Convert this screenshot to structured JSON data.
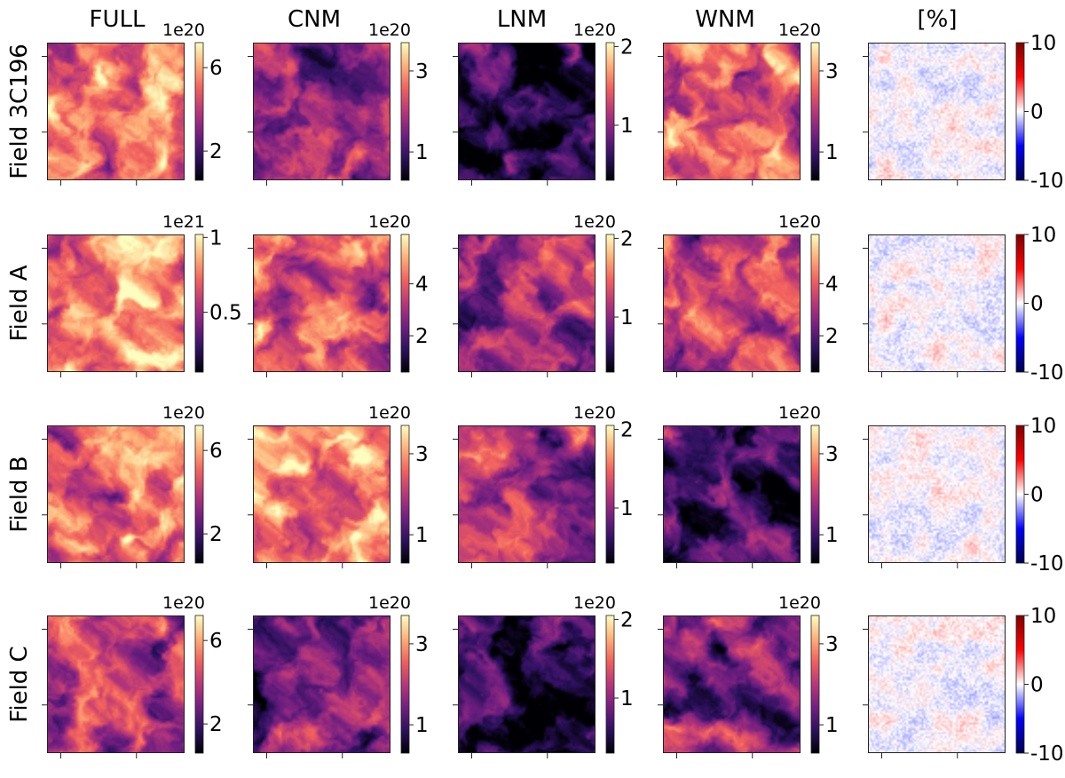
{
  "chart_data": {
    "type": "heatmap",
    "title": "",
    "columns": [
      "FULL",
      "CNM",
      "LNM",
      "WNM",
      "[%]"
    ],
    "rows": [
      {
        "label": "Field 3C196",
        "panels": [
          {
            "scale": "1e20",
            "cbar_ticks": [
              "2",
              "6"
            ],
            "cbar_tick_values": [
              2,
              6
            ],
            "cbar_range": [
              0.6,
              7.2
            ],
            "colormap": "magma",
            "mean_level": 0.72
          },
          {
            "scale": "1e20",
            "cbar_ticks": [
              "1",
              "3"
            ],
            "cbar_tick_values": [
              1,
              3
            ],
            "cbar_range": [
              0.3,
              3.7
            ],
            "colormap": "magma",
            "mean_level": 0.45
          },
          {
            "scale": "1e20",
            "cbar_ticks": [
              "1",
              "2"
            ],
            "cbar_tick_values": [
              1,
              2
            ],
            "cbar_range": [
              0.3,
              2.05
            ],
            "colormap": "magma",
            "mean_level": 0.14
          },
          {
            "scale": "1e20",
            "cbar_ticks": [
              "1",
              "3"
            ],
            "cbar_tick_values": [
              1,
              3
            ],
            "cbar_range": [
              0.3,
              3.7
            ],
            "colormap": "magma",
            "mean_level": 0.66
          },
          {
            "scale": "",
            "cbar_ticks": [
              "-10",
              "0",
              "10"
            ],
            "cbar_tick_values": [
              -10,
              0,
              10
            ],
            "cbar_range": [
              -10,
              10
            ],
            "colormap": "seismic",
            "mean_level": 0.5
          }
        ]
      },
      {
        "label": "Field A",
        "panels": [
          {
            "scale": "1e21",
            "cbar_ticks": [
              "0.5",
              "1"
            ],
            "cbar_tick_values": [
              0.5,
              1
            ],
            "cbar_range": [
              0.1,
              1.02
            ],
            "colormap": "magma",
            "mean_level": 0.78
          },
          {
            "scale": "1e20",
            "cbar_ticks": [
              "2",
              "4"
            ],
            "cbar_tick_values": [
              2,
              4
            ],
            "cbar_range": [
              0.6,
              5.9
            ],
            "colormap": "magma",
            "mean_level": 0.6
          },
          {
            "scale": "1e20",
            "cbar_ticks": [
              "1",
              "2"
            ],
            "cbar_tick_values": [
              1,
              2
            ],
            "cbar_range": [
              0.3,
              2.05
            ],
            "colormap": "magma",
            "mean_level": 0.42
          },
          {
            "scale": "1e20",
            "cbar_ticks": [
              "2",
              "4"
            ],
            "cbar_tick_values": [
              2,
              4
            ],
            "cbar_range": [
              0.6,
              5.9
            ],
            "colormap": "magma",
            "mean_level": 0.56
          },
          {
            "scale": "",
            "cbar_ticks": [
              "-10",
              "0",
              "10"
            ],
            "cbar_tick_values": [
              -10,
              0,
              10
            ],
            "cbar_range": [
              -10,
              10
            ],
            "colormap": "seismic",
            "mean_level": 0.5
          }
        ]
      },
      {
        "label": "Field B",
        "panels": [
          {
            "scale": "1e20",
            "cbar_ticks": [
              "2",
              "6"
            ],
            "cbar_tick_values": [
              2,
              6
            ],
            "cbar_range": [
              0.6,
              7.2
            ],
            "colormap": "magma",
            "mean_level": 0.7
          },
          {
            "scale": "1e20",
            "cbar_ticks": [
              "1",
              "3"
            ],
            "cbar_tick_values": [
              1,
              3
            ],
            "cbar_range": [
              0.3,
              3.7
            ],
            "colormap": "magma",
            "mean_level": 0.76
          },
          {
            "scale": "1e20",
            "cbar_ticks": [
              "1",
              "2"
            ],
            "cbar_tick_values": [
              1,
              2
            ],
            "cbar_range": [
              0.3,
              2.05
            ],
            "colormap": "magma",
            "mean_level": 0.48
          },
          {
            "scale": "1e20",
            "cbar_ticks": [
              "1",
              "3"
            ],
            "cbar_tick_values": [
              1,
              3
            ],
            "cbar_range": [
              0.3,
              3.7
            ],
            "colormap": "magma",
            "mean_level": 0.25
          },
          {
            "scale": "",
            "cbar_ticks": [
              "-10",
              "0",
              "10"
            ],
            "cbar_tick_values": [
              -10,
              0,
              10
            ],
            "cbar_range": [
              -10,
              10
            ],
            "colormap": "seismic",
            "mean_level": 0.5
          }
        ]
      },
      {
        "label": "Field C",
        "panels": [
          {
            "scale": "1e20",
            "cbar_ticks": [
              "2",
              "6"
            ],
            "cbar_tick_values": [
              2,
              6
            ],
            "cbar_range": [
              0.6,
              7.2
            ],
            "colormap": "magma",
            "mean_level": 0.48
          },
          {
            "scale": "1e20",
            "cbar_ticks": [
              "1",
              "3"
            ],
            "cbar_tick_values": [
              1,
              3
            ],
            "cbar_range": [
              0.3,
              3.7
            ],
            "colormap": "magma",
            "mean_level": 0.38
          },
          {
            "scale": "1e20",
            "cbar_ticks": [
              "1",
              "2"
            ],
            "cbar_tick_values": [
              1,
              2
            ],
            "cbar_range": [
              0.3,
              2.05
            ],
            "colormap": "magma",
            "mean_level": 0.16
          },
          {
            "scale": "1e20",
            "cbar_ticks": [
              "1",
              "3"
            ],
            "cbar_tick_values": [
              1,
              3
            ],
            "cbar_range": [
              0.3,
              3.7
            ],
            "colormap": "magma",
            "mean_level": 0.4
          },
          {
            "scale": "",
            "cbar_ticks": [
              "-10",
              "0",
              "10"
            ],
            "cbar_tick_values": [
              -10,
              0,
              10
            ],
            "cbar_range": [
              -10,
              10
            ],
            "colormap": "seismic",
            "mean_level": 0.5
          }
        ]
      }
    ],
    "colormaps": {
      "magma": [
        "#000004",
        "#2c115f",
        "#721f81",
        "#b73779",
        "#f1605d",
        "#feb078",
        "#fcfdbf"
      ],
      "seismic": [
        "#00004c",
        "#0000ff",
        "#ffffff",
        "#ff0000",
        "#7f0000"
      ]
    }
  }
}
